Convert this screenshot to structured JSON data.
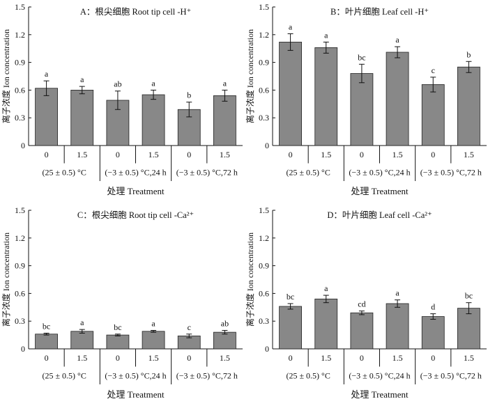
{
  "colors": {
    "bar_fill": "#888888",
    "bar_stroke": "#222222",
    "text": "#111111"
  },
  "chart_data": [
    {
      "type": "bar",
      "title": "A：根尖细胞  Root tip cell -H⁺",
      "ylabel": "离子浓度  Ion concentration",
      "xlabel": "处理  Treatment",
      "ylim": [
        0,
        1.5
      ],
      "yticks": [
        "0",
        "0.3",
        "0.6",
        "0.9",
        "1.2",
        "1.5"
      ],
      "categories": [
        "0",
        "1.5",
        "0",
        "1.5",
        "0",
        "1.5"
      ],
      "groups": [
        "(25 ± 0.5) °C",
        "(−3 ± 0.5) °C,24 h",
        "(−3 ± 0.5) °C,72 h"
      ],
      "values": [
        0.62,
        0.6,
        0.49,
        0.55,
        0.39,
        0.54
      ],
      "errors": [
        0.08,
        0.04,
        0.1,
        0.05,
        0.08,
        0.06
      ],
      "letters": [
        "a",
        "a",
        "ab",
        "a",
        "b",
        "a"
      ]
    },
    {
      "type": "bar",
      "title": "B：叶片细胞  Leaf cell -H⁺",
      "ylabel": "离子浓度  Ion concentration",
      "xlabel": "处理  Treatment",
      "ylim": [
        0,
        1.5
      ],
      "yticks": [
        "0",
        "0.3",
        "0.6",
        "0.9",
        "1.2",
        "1.5"
      ],
      "categories": [
        "0",
        "1.5",
        "0",
        "1.5",
        "0",
        "1.5"
      ],
      "groups": [
        "(25 ± 0.5) °C",
        "(−3 ± 0.5) °C,24 h",
        "(−3 ± 0.5) °C,72 h"
      ],
      "values": [
        1.12,
        1.06,
        0.78,
        1.01,
        0.66,
        0.85
      ],
      "errors": [
        0.09,
        0.06,
        0.1,
        0.06,
        0.08,
        0.06
      ],
      "letters": [
        "a",
        "a",
        "bc",
        "a",
        "c",
        "b"
      ]
    },
    {
      "type": "bar",
      "title": "C：根尖细胞  Root tip cell -Ca²⁺",
      "ylabel": "离子浓度  Ion concentration",
      "xlabel": "处理  Treatment",
      "ylim": [
        0,
        1.5
      ],
      "yticks": [
        "0",
        "0.3",
        "0.6",
        "0.9",
        "1.2",
        "1.5"
      ],
      "categories": [
        "0",
        "1.5",
        "0",
        "1.5",
        "0",
        "1.5"
      ],
      "groups": [
        "(25 ± 0.5) °C",
        "(−3 ± 0.5) °C,24 h",
        "(−3 ± 0.5) °C,72 h"
      ],
      "values": [
        0.16,
        0.19,
        0.15,
        0.19,
        0.14,
        0.18
      ],
      "errors": [
        0.01,
        0.02,
        0.01,
        0.01,
        0.02,
        0.02
      ],
      "letters": [
        "bc",
        "a",
        "bc",
        "a",
        "c",
        "ab"
      ]
    },
    {
      "type": "bar",
      "title": "D：叶片细胞  Leaf cell -Ca²⁺",
      "ylabel": "离子浓度  Ion concentration",
      "xlabel": "处理  Treatment",
      "ylim": [
        0,
        1.5
      ],
      "yticks": [
        "0",
        "0.3",
        "0.6",
        "0.9",
        "1.2",
        "1.5"
      ],
      "categories": [
        "0",
        "1.5",
        "0",
        "1.5",
        "0",
        "1.5"
      ],
      "groups": [
        "(25 ± 0.5) °C",
        "(−3 ± 0.5) °C,24 h",
        "(−3 ± 0.5) °C,72 h"
      ],
      "values": [
        0.46,
        0.54,
        0.39,
        0.49,
        0.35,
        0.44
      ],
      "errors": [
        0.03,
        0.04,
        0.02,
        0.04,
        0.03,
        0.06
      ],
      "letters": [
        "bc",
        "a",
        "cd",
        "a",
        "d",
        "bc"
      ]
    }
  ]
}
